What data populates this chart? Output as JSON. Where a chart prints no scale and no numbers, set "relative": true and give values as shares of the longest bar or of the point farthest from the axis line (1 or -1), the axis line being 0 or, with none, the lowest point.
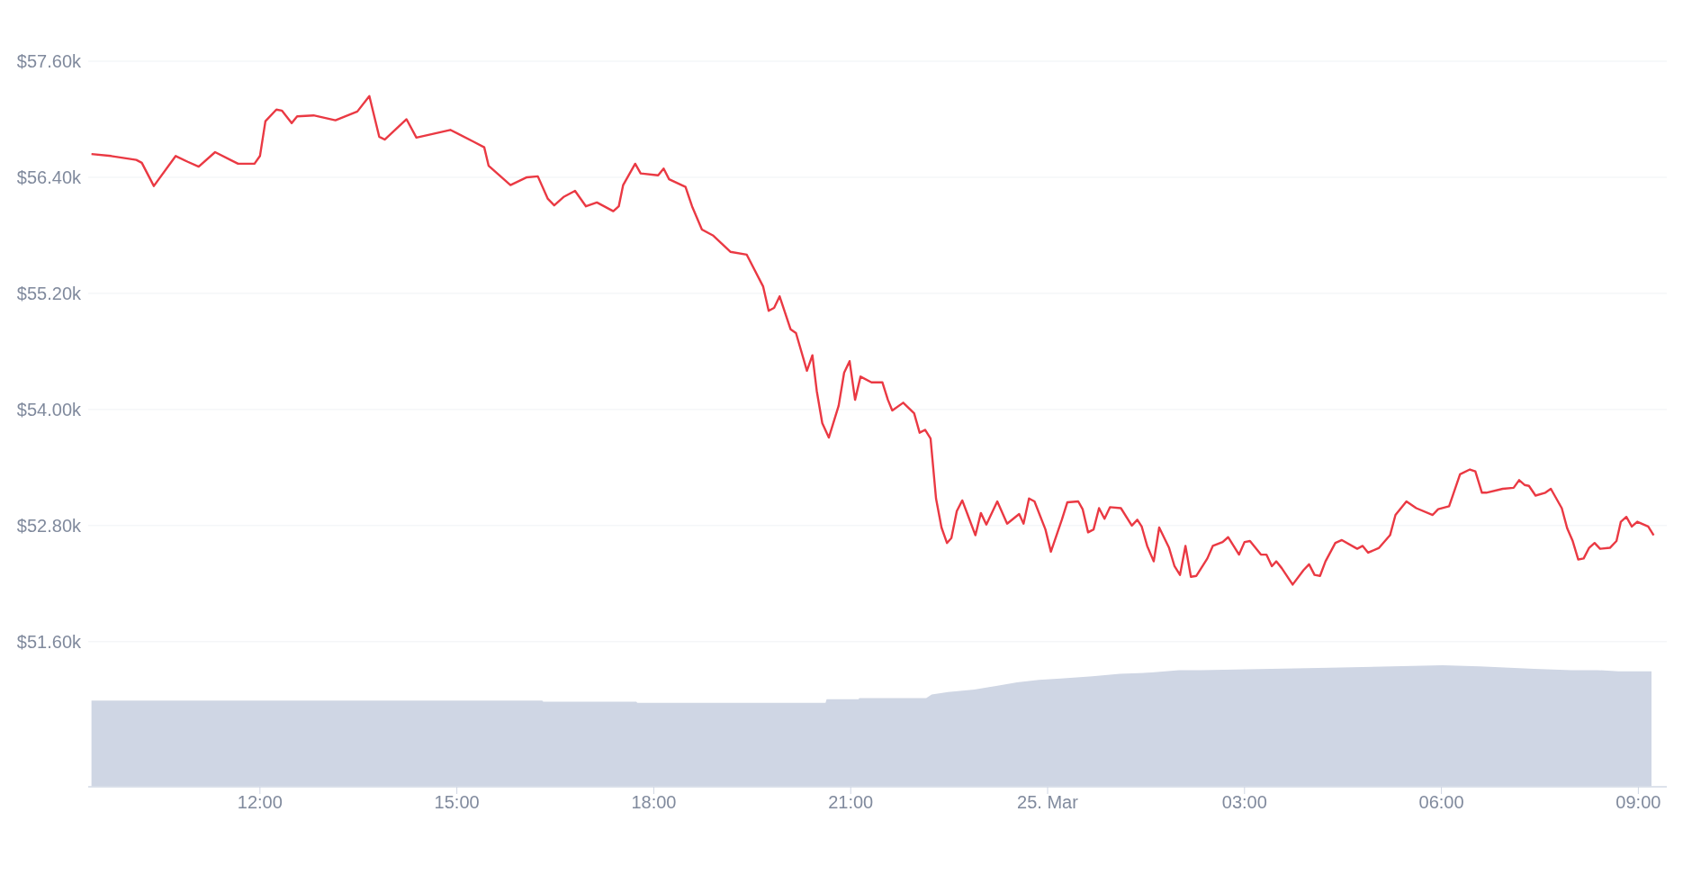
{
  "chart_data": [
    {
      "type": "line",
      "xlim": [
        "--03-24T09:23",
        "--03-25T09:26"
      ],
      "xticks": [
        {
          "value": "--03-24T12:00",
          "label": "12:00"
        },
        {
          "value": "--03-24T15:00",
          "label": "15:00"
        },
        {
          "value": "--03-24T18:00",
          "label": "18:00"
        },
        {
          "value": "--03-24T21:00",
          "label": "21:00"
        },
        {
          "value": "--03-25T00:00",
          "label": "25. Mar"
        },
        {
          "value": "--03-25T03:00",
          "label": "03:00"
        },
        {
          "value": "--03-25T06:00",
          "label": "06:00"
        },
        {
          "value": "--03-25T09:00",
          "label": "09:00"
        }
      ],
      "ylim": [
        50100,
        57600
      ],
      "yticks": [
        {
          "value": 51600,
          "label": "$51.60k"
        },
        {
          "value": 52800,
          "label": "$52.80k"
        },
        {
          "value": 54000,
          "label": "$54.00k"
        },
        {
          "value": 55200,
          "label": "$55.20k"
        },
        {
          "value": 56400,
          "label": "$56.40k"
        },
        {
          "value": 57600,
          "label": "$57.60k"
        }
      ],
      "grid": "y",
      "legend": false,
      "series": [
        {
          "color": "#ea3943",
          "x": [
            "--03-24T09:26",
            "--03-24T09:44",
            "--03-24T10:07",
            "--03-24T10:12",
            "--03-24T10:23",
            "--03-24T10:43",
            "--03-24T10:54",
            "--03-24T11:04",
            "--03-24T11:19",
            "--03-24T11:40",
            "--03-24T11:55",
            "--03-24T12:00",
            "--03-24T12:05",
            "--03-24T12:15",
            "--03-24T12:20",
            "--03-24T12:29",
            "--03-24T12:34",
            "--03-24T12:49",
            "--03-24T13:09",
            "--03-24T13:29",
            "--03-24T13:40",
            "--03-24T13:49",
            "--03-24T13:54",
            "--03-24T14:14",
            "--03-24T14:23",
            "--03-24T14:54",
            "--03-24T15:15",
            "--03-24T15:25",
            "--03-24T15:29",
            "--03-24T15:49",
            "--03-24T16:04",
            "--03-24T16:14",
            "--03-24T16:23",
            "--03-24T16:29",
            "--03-24T16:38",
            "--03-24T16:48",
            "--03-24T16:58",
            "--03-24T17:08",
            "--03-24T17:23",
            "--03-24T17:28",
            "--03-24T17:32",
            "--03-24T17:43",
            "--03-24T17:48",
            "--03-24T18:04",
            "--03-24T18:09",
            "--03-24T18:14",
            "--03-24T18:29",
            "--03-24T18:35",
            "--03-24T18:44",
            "--03-24T18:54",
            "--03-24T19:10",
            "--03-24T19:25",
            "--03-24T19:40",
            "--03-24T19:45",
            "--03-24T19:50",
            "--03-24T19:55",
            "--03-24T20:05",
            "--03-24T20:10",
            "--03-24T20:20",
            "--03-24T20:25",
            "--03-24T20:29",
            "--03-24T20:34",
            "--03-24T20:40",
            "--03-24T20:49",
            "--03-24T20:54",
            "--03-24T20:59",
            "--03-24T21:04",
            "--03-24T21:09",
            "--03-24T21:19",
            "--03-24T21:29",
            "--03-24T21:34",
            "--03-24T21:38",
            "--03-24T21:48",
            "--03-24T21:58",
            "--03-24T22:03",
            "--03-24T22:08",
            "--03-24T22:13",
            "--03-24T22:18",
            "--03-24T22:23",
            "--03-24T22:28",
            "--03-24T22:32",
            "--03-24T22:37",
            "--03-24T22:42",
            "--03-24T22:47",
            "--03-24T22:54",
            "--03-24T22:59",
            "--03-24T23:04",
            "--03-24T23:14",
            "--03-24T23:23",
            "--03-24T23:34",
            "--03-24T23:38",
            "--03-24T23:43",
            "--03-24T23:48",
            "--03-24T23:58",
            "--03-25T00:03",
            "--03-25T00:13",
            "--03-25T00:18",
            "--03-25T00:28",
            "--03-25T00:32",
            "--03-25T00:37",
            "--03-25T00:42",
            "--03-25T00:47",
            "--03-25T00:52",
            "--03-25T00:57",
            "--03-25T01:07",
            "--03-25T01:17",
            "--03-25T01:22",
            "--03-25T01:26",
            "--03-25T01:31",
            "--03-25T01:37",
            "--03-25T01:42",
            "--03-25T01:51",
            "--03-25T01:56",
            "--03-25T02:01",
            "--03-25T02:06",
            "--03-25T02:11",
            "--03-25T02:16",
            "--03-25T02:26",
            "--03-25T02:31",
            "--03-25T02:40",
            "--03-25T02:45",
            "--03-25T02:55",
            "--03-25T03:00",
            "--03-25T03:05",
            "--03-25T03:15",
            "--03-25T03:20",
            "--03-25T03:25",
            "--03-25T03:29",
            "--03-25T03:34",
            "--03-25T03:44",
            "--03-25T03:54",
            "--03-25T03:59",
            "--03-25T04:04",
            "--03-25T04:09",
            "--03-25T04:14",
            "--03-25T04:23",
            "--03-25T04:29",
            "--03-25T04:43",
            "--03-25T04:48",
            "--03-25T04:53",
            "--03-25T05:03",
            "--03-25T05:13",
            "--03-25T05:18",
            "--03-25T05:28",
            "--03-25T05:37",
            "--03-25T05:52",
            "--03-25T05:57",
            "--03-25T06:07",
            "--03-25T06:17",
            "--03-25T06:26",
            "--03-25T06:31",
            "--03-25T06:37",
            "--03-25T06:41",
            "--03-25T06:56",
            "--03-25T07:06",
            "--03-25T07:11",
            "--03-25T07:16",
            "--03-25T07:20",
            "--03-25T07:26",
            "--03-25T07:35",
            "--03-25T07:40",
            "--03-25T07:50",
            "--03-25T07:55",
            "--03-25T08:00",
            "--03-25T08:05",
            "--03-25T08:10",
            "--03-25T08:15",
            "--03-25T08:20",
            "--03-25T08:25",
            "--03-25T08:34",
            "--03-25T08:40",
            "--03-25T08:44",
            "--03-25T08:49",
            "--03-25T08:54",
            "--03-25T08:59",
            "--03-25T09:09",
            "--03-25T09:14"
          ],
          "values": [
            56640,
            56620,
            56580,
            56550,
            56310,
            56620,
            56560,
            56510,
            56660,
            56540,
            56540,
            56620,
            56980,
            57100,
            57090,
            56960,
            57030,
            57040,
            56990,
            57080,
            57240,
            56820,
            56790,
            57000,
            56810,
            56890,
            56770,
            56710,
            56520,
            56320,
            56400,
            56410,
            56180,
            56110,
            56200,
            56260,
            56100,
            56140,
            56050,
            56100,
            56320,
            56540,
            56440,
            56420,
            56490,
            56380,
            56300,
            56100,
            55860,
            55800,
            55630,
            55600,
            55270,
            55020,
            55050,
            55170,
            54830,
            54790,
            54400,
            54560,
            54190,
            53860,
            53710,
            54040,
            54380,
            54500,
            54100,
            54340,
            54280,
            54280,
            54100,
            53990,
            54070,
            53960,
            53760,
            53790,
            53700,
            53080,
            52780,
            52620,
            52670,
            52950,
            53060,
            52910,
            52700,
            52930,
            52810,
            53050,
            52820,
            52920,
            52820,
            53080,
            53050,
            52760,
            52530,
            52860,
            53040,
            53050,
            52970,
            52730,
            52760,
            52980,
            52870,
            52990,
            52980,
            52800,
            52860,
            52790,
            52590,
            52430,
            52780,
            52570,
            52380,
            52290,
            52590,
            52270,
            52280,
            52460,
            52590,
            52630,
            52680,
            52500,
            52630,
            52640,
            52500,
            52500,
            52380,
            52430,
            52360,
            52190,
            52340,
            52400,
            52290,
            52280,
            52430,
            52620,
            52650,
            52560,
            52590,
            52520,
            52570,
            52700,
            52910,
            53050,
            52980,
            52910,
            52970,
            53000,
            53330,
            53380,
            53360,
            53140,
            53140,
            53180,
            53190,
            53270,
            53220,
            53210,
            53110,
            53140,
            53180,
            52980,
            52770,
            52640,
            52450,
            52460,
            52570,
            52620,
            52560,
            52570,
            52640,
            52840,
            52890,
            52790,
            52840,
            52790,
            52700
          ]
        }
      ]
    },
    {
      "type": "area",
      "relative": true,
      "legend": false,
      "tick_labels": false,
      "xlim": [
        "--03-24T09:23",
        "--03-25T09:26"
      ],
      "xticks": [
        {
          "value": "--03-24T12:00",
          "label": "12:00"
        },
        {
          "value": "--03-24T15:00",
          "label": "15:00"
        },
        {
          "value": "--03-24T18:00",
          "label": "18:00"
        },
        {
          "value": "--03-24T21:00",
          "label": "21:00"
        },
        {
          "value": "--03-25T00:00",
          "label": "25. Mar"
        },
        {
          "value": "--03-25T03:00",
          "label": "03:00"
        },
        {
          "value": "--03-25T06:00",
          "label": "06:00"
        },
        {
          "value": "--03-25T09:00",
          "label": "09:00"
        }
      ],
      "series": [
        {
          "color": "#cfd6e4",
          "x": [
            "--03-24T09:26",
            "--03-24T16:18",
            "--03-24T16:19",
            "--03-24T17:44",
            "--03-24T17:45",
            "--03-24T20:37",
            "--03-24T20:38",
            "--03-24T21:07",
            "--03-24T21:08",
            "--03-24T22:09",
            "--03-24T22:14",
            "--03-24T22:29",
            "--03-24T22:53",
            "--03-24T23:13",
            "--03-24T23:32",
            "--03-24T23:52",
            "--03-25T00:12",
            "--03-25T00:41",
            "--03-25T01:06",
            "--03-25T01:35",
            "--03-25T02:00",
            "--03-25T02:20",
            "--03-25T04:18",
            "--03-25T06:01",
            "--03-25T06:35",
            "--03-25T07:25",
            "--03-25T07:59",
            "--03-25T08:23",
            "--03-25T08:42",
            "--03-25T09:12"
          ],
          "values": [
            0.71,
            0.71,
            0.7,
            0.7,
            0.69,
            0.69,
            0.72,
            0.72,
            0.73,
            0.73,
            0.76,
            0.78,
            0.8,
            0.83,
            0.86,
            0.88,
            0.89,
            0.91,
            0.93,
            0.94,
            0.96,
            0.96,
            0.98,
            1,
            0.99,
            0.97,
            0.96,
            0.96,
            0.95,
            0.95
          ]
        }
      ]
    }
  ]
}
